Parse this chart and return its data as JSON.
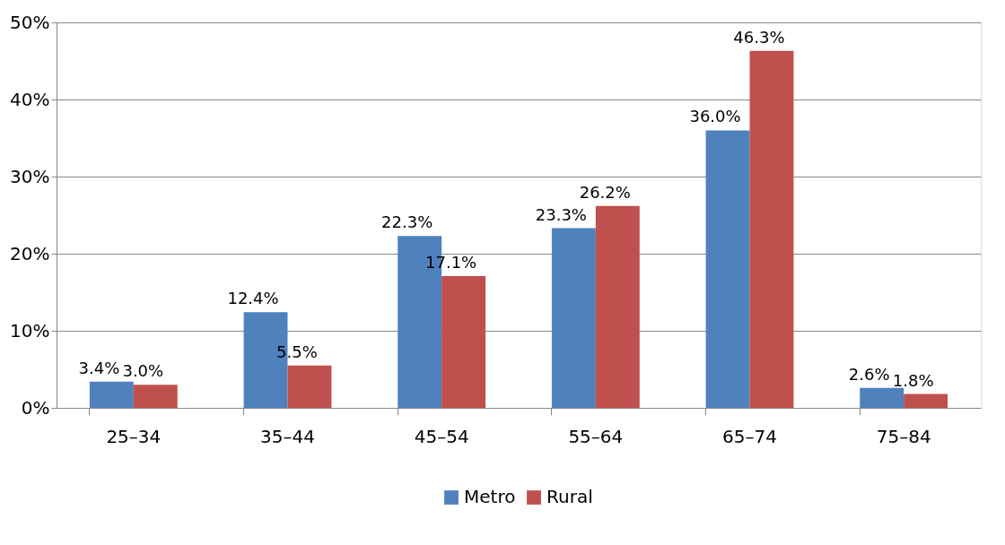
{
  "chart_data": {
    "type": "bar",
    "categories": [
      "25–34",
      "35–44",
      "45–54",
      "55–64",
      "65–74",
      "75–84"
    ],
    "series": [
      {
        "name": "Metro",
        "color": "#4f81bd",
        "values": [
          3.4,
          12.4,
          22.3,
          23.3,
          36.0,
          2.6
        ],
        "value_labels": [
          "3.4%",
          "12.4%",
          "22.3%",
          "23.3%",
          "36.0%",
          "2.6%"
        ]
      },
      {
        "name": "Rural",
        "color": "#c0504d",
        "values": [
          3.0,
          5.5,
          17.1,
          26.2,
          46.3,
          1.8
        ],
        "value_labels": [
          "3.0%",
          "5.5%",
          "17.1%",
          "26.2%",
          "46.3%",
          "1.8%"
        ]
      }
    ],
    "ylim": [
      0,
      50
    ],
    "yticks": [
      {
        "value": 0,
        "label": "0%"
      },
      {
        "value": 10,
        "label": "10%"
      },
      {
        "value": 20,
        "label": "20%"
      },
      {
        "value": 30,
        "label": "30%"
      },
      {
        "value": 40,
        "label": "40%"
      },
      {
        "value": 50,
        "label": "50%"
      }
    ],
    "grid": "y",
    "legend": "bottom"
  }
}
